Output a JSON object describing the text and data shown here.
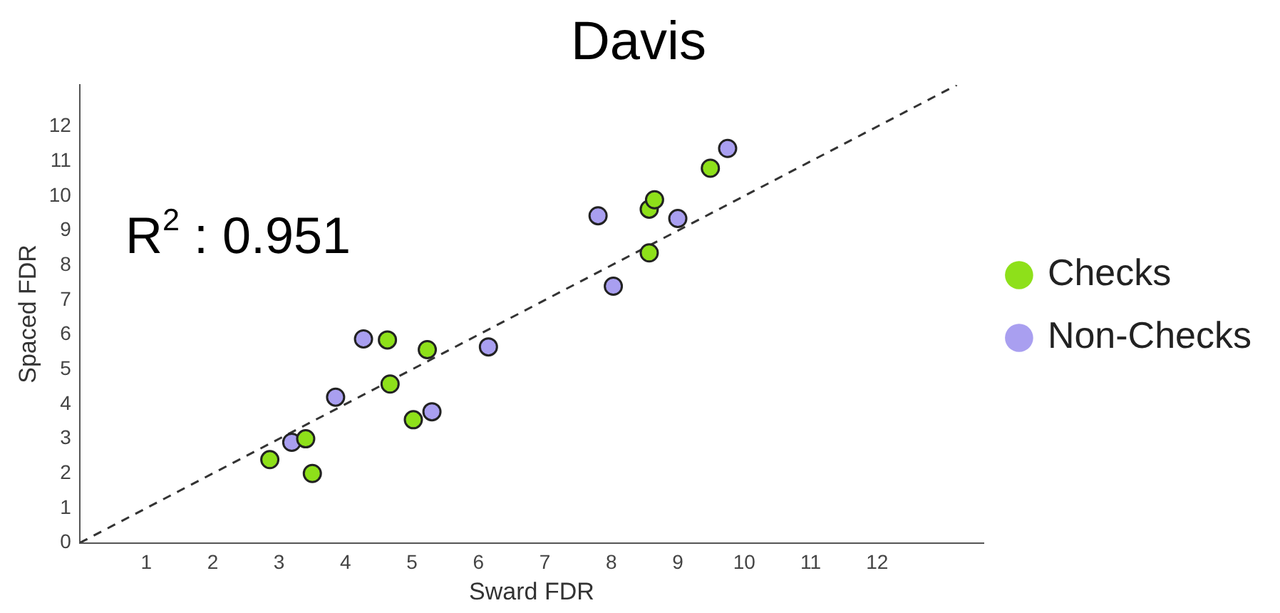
{
  "chart_data": {
    "type": "scatter",
    "title": "Davis",
    "xlabel": "Sward FDR",
    "ylabel": "Spaced FDR",
    "annotations": [
      "R$^{2}$ : 0.951"
    ],
    "xlim": [
      0,
      13.6
    ],
    "ylim": [
      0,
      13.2
    ],
    "xticks": [
      1,
      2,
      3,
      4,
      5,
      6,
      7,
      8,
      9,
      10,
      11,
      12
    ],
    "yticks": [
      0,
      1,
      2,
      3,
      4,
      5,
      6,
      7,
      8,
      9,
      10,
      11,
      12
    ],
    "grid": false,
    "legend": "right",
    "marker": "circle",
    "series": [
      {
        "name": "Checks",
        "color": "#8ee01a",
        "x": [
          2.86,
          3.4,
          3.5,
          4.67,
          4.63,
          5.23,
          5.02,
          8.57,
          8.57,
          8.65,
          9.49
        ],
        "values": [
          2.4,
          3.0,
          2.0,
          4.58,
          5.85,
          5.57,
          3.55,
          8.36,
          9.62,
          9.89,
          10.8
        ]
      },
      {
        "name": "Non-Checks",
        "color": "#a99ff0",
        "x": [
          3.19,
          3.85,
          4.27,
          5.3,
          6.15,
          7.8,
          8.03,
          9.0,
          9.75
        ],
        "values": [
          2.9,
          4.2,
          5.88,
          3.78,
          5.65,
          9.43,
          7.4,
          9.35,
          11.37
        ]
      },
      {
        "type": "line",
        "color": "#333333",
        "line_style": "dashed",
        "marker": "none",
        "x": [
          0,
          13.2
        ],
        "values": [
          0,
          13.2
        ]
      }
    ]
  }
}
